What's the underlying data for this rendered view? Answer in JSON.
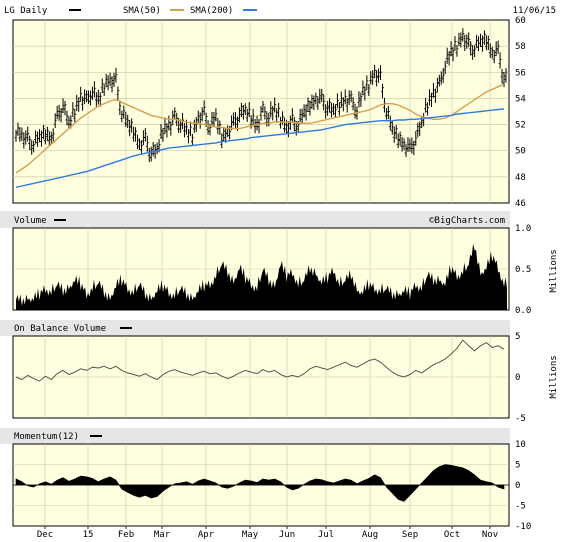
{
  "header": {
    "symbol_label": "LG Daily",
    "sma50_label": "SMA(50)",
    "sma200_label": "SMA(200)",
    "date": "11/06/15",
    "watermark": "©BigCharts.com"
  },
  "colors": {
    "panel_bg": "#ffffe0",
    "panel_header": "#e6e6e6",
    "price": "#000000",
    "sma50": "#d4a04a",
    "sma200": "#2f7ae5",
    "volume": "#000000",
    "obv": "#555555",
    "momentum": "#000000"
  },
  "x_axis": {
    "labels": [
      "Dec",
      "15",
      "Feb",
      "Mar",
      "Apr",
      "May",
      "Jun",
      "Jul",
      "Aug",
      "Sep",
      "Oct",
      "Nov"
    ]
  },
  "chart_data": [
    {
      "type": "line",
      "panel": "price",
      "title": "LG Daily",
      "yticks": [
        "60",
        "58",
        "56",
        "54",
        "52",
        "50",
        "48",
        "46"
      ],
      "ylim": [
        46,
        60
      ],
      "grid": true,
      "series": [
        {
          "name": "LG Daily",
          "values": [
            51.5,
            51.2,
            50.8,
            50.5,
            50.9,
            51.3,
            51.0,
            52.5,
            53.5,
            52.0,
            53.0,
            54.2,
            53.8,
            54.5,
            53.8,
            55.0,
            55.4,
            55.3,
            52.8,
            52.0,
            51.5,
            50.5,
            50.8,
            49.8,
            50.0,
            51.5,
            52.0,
            52.5,
            52.0,
            51.5,
            51.2,
            52.5,
            52.8,
            51.8,
            52.5,
            51.0,
            51.5,
            52.0,
            52.8,
            53.0,
            52.5,
            52.0,
            53.0,
            52.5,
            53.2,
            52.5,
            51.8,
            52.2,
            52.0,
            52.8,
            53.5,
            54.0,
            53.8,
            53.3,
            53.0,
            53.5,
            54.0,
            53.8,
            53.0,
            54.5,
            55.0,
            56.0,
            55.5,
            53.0,
            51.5,
            51.0,
            50.5,
            50.0,
            51.0,
            52.0,
            53.5,
            54.5,
            55.0,
            56.5,
            57.5,
            58.0,
            58.8,
            58.0,
            57.8,
            58.2,
            58.5,
            57.5,
            57.5,
            55.5
          ]
        },
        {
          "name": "SMA(50)",
          "values": [
            48.3,
            48.6,
            48.9,
            49.3,
            49.7,
            50.1,
            50.5,
            50.9,
            51.3,
            51.7,
            52.1,
            52.5,
            52.8,
            53.1,
            53.4,
            53.6,
            53.8,
            53.9,
            53.7,
            53.5,
            53.3,
            53.1,
            52.9,
            52.7,
            52.6,
            52.5,
            52.4,
            52.4,
            52.3,
            52.2,
            52.1,
            52.1,
            52.0,
            51.9,
            51.8,
            51.8,
            51.7,
            51.7,
            51.7,
            51.8,
            51.9,
            52.0,
            52.1,
            52.1,
            52.2,
            52.2,
            52.2,
            52.2,
            52.1,
            52.1,
            52.1,
            52.2,
            52.3,
            52.4,
            52.5,
            52.6,
            52.7,
            52.8,
            52.9,
            53.0,
            53.1,
            53.3,
            53.5,
            53.6,
            53.6,
            53.5,
            53.3,
            53.1,
            52.8,
            52.6,
            52.5,
            52.4,
            52.4,
            52.5,
            52.7,
            53.0,
            53.3,
            53.6,
            53.9,
            54.2,
            54.5,
            54.7,
            54.9,
            55.1
          ]
        },
        {
          "name": "SMA(200)",
          "values": [
            47.2,
            47.3,
            47.4,
            47.5,
            47.6,
            47.7,
            47.8,
            47.9,
            48.0,
            48.1,
            48.2,
            48.3,
            48.4,
            48.55,
            48.7,
            48.85,
            49.0,
            49.15,
            49.3,
            49.45,
            49.6,
            49.7,
            49.8,
            49.9,
            50.0,
            50.1,
            50.2,
            50.25,
            50.3,
            50.35,
            50.4,
            50.45,
            50.5,
            50.55,
            50.6,
            50.7,
            50.75,
            50.8,
            50.85,
            50.9,
            51.0,
            51.05,
            51.1,
            51.15,
            51.2,
            51.25,
            51.3,
            51.35,
            51.4,
            51.45,
            51.5,
            51.55,
            51.6,
            51.7,
            51.8,
            51.9,
            52.0,
            52.05,
            52.1,
            52.15,
            52.2,
            52.25,
            52.3,
            52.3,
            52.3,
            52.35,
            52.35,
            52.4,
            52.4,
            52.45,
            52.5,
            52.55,
            52.6,
            52.65,
            52.7,
            52.8,
            52.85,
            52.9,
            52.95,
            53.0,
            53.05,
            53.1,
            53.15,
            53.2
          ]
        }
      ]
    },
    {
      "type": "area",
      "panel": "volume",
      "title": "Volume",
      "yticks": [
        "1.0",
        "0.5",
        "0.0"
      ],
      "ylim": [
        0,
        1.0
      ],
      "y_unit": "Millions",
      "series": [
        {
          "name": "Volume",
          "values": [
            0.12,
            0.1,
            0.15,
            0.12,
            0.18,
            0.25,
            0.2,
            0.3,
            0.22,
            0.28,
            0.35,
            0.3,
            0.18,
            0.25,
            0.32,
            0.2,
            0.15,
            0.28,
            0.35,
            0.25,
            0.2,
            0.3,
            0.18,
            0.15,
            0.22,
            0.28,
            0.2,
            0.16,
            0.25,
            0.18,
            0.15,
            0.22,
            0.28,
            0.3,
            0.4,
            0.55,
            0.45,
            0.35,
            0.5,
            0.38,
            0.3,
            0.25,
            0.48,
            0.35,
            0.3,
            0.55,
            0.4,
            0.45,
            0.3,
            0.35,
            0.5,
            0.45,
            0.32,
            0.38,
            0.48,
            0.3,
            0.35,
            0.42,
            0.25,
            0.2,
            0.3,
            0.25,
            0.22,
            0.25,
            0.18,
            0.2,
            0.22,
            0.18,
            0.3,
            0.25,
            0.42,
            0.35,
            0.38,
            0.3,
            0.5,
            0.4,
            0.45,
            0.55,
            0.78,
            0.45,
            0.5,
            0.65,
            0.5,
            0.3
          ]
        }
      ]
    },
    {
      "type": "line",
      "panel": "obv",
      "title": "On Balance Volume",
      "yticks": [
        "5",
        "0",
        "-5"
      ],
      "ylim": [
        -5,
        5
      ],
      "y_unit": "Millions",
      "series": [
        {
          "name": "On Balance Volume",
          "values": [
            0.0,
            -0.3,
            0.2,
            -0.2,
            -0.5,
            0.1,
            -0.3,
            0.4,
            0.8,
            0.3,
            0.6,
            1.0,
            0.8,
            1.2,
            1.1,
            1.3,
            1.0,
            1.3,
            0.8,
            0.5,
            0.3,
            0.1,
            0.4,
            0.0,
            -0.3,
            0.3,
            0.7,
            0.9,
            0.6,
            0.4,
            0.2,
            0.5,
            0.7,
            0.4,
            0.5,
            0.1,
            -0.2,
            0.1,
            0.5,
            0.8,
            0.6,
            0.4,
            0.9,
            0.6,
            0.8,
            0.3,
            0.0,
            0.2,
            0.0,
            0.4,
            1.0,
            1.3,
            1.1,
            0.9,
            1.2,
            1.5,
            1.8,
            1.4,
            1.2,
            1.6,
            2.0,
            2.2,
            1.8,
            1.2,
            0.6,
            0.2,
            0.0,
            0.3,
            0.8,
            0.5,
            1.0,
            1.5,
            1.8,
            2.2,
            2.8,
            3.5,
            4.5,
            3.8,
            3.2,
            3.8,
            4.2,
            3.6,
            3.8,
            3.4
          ]
        }
      ]
    },
    {
      "type": "area",
      "panel": "momentum",
      "title": "Momentum(12)",
      "yticks": [
        "10",
        "5",
        "0",
        "-5",
        "-10"
      ],
      "ylim": [
        -10,
        10
      ],
      "series": [
        {
          "name": "Momentum(12)",
          "values": [
            1.5,
            0.8,
            -0.2,
            -0.5,
            0.3,
            0.8,
            0.2,
            1.2,
            1.8,
            0.9,
            1.5,
            2.2,
            2.0,
            1.6,
            0.8,
            1.5,
            2.0,
            1.2,
            -1.0,
            -1.8,
            -2.5,
            -3.0,
            -2.5,
            -3.2,
            -2.8,
            -1.5,
            -0.5,
            0.3,
            0.5,
            0.8,
            0.2,
            1.0,
            1.5,
            1.0,
            0.5,
            -0.5,
            -0.8,
            -0.3,
            0.5,
            1.2,
            1.0,
            0.6,
            1.5,
            1.2,
            1.5,
            0.8,
            -0.5,
            -1.2,
            -0.8,
            0.2,
            1.0,
            1.5,
            1.3,
            0.8,
            0.5,
            1.0,
            1.5,
            1.2,
            0.3,
            1.0,
            1.6,
            2.5,
            1.8,
            -0.5,
            -2.0,
            -3.5,
            -4.0,
            -2.5,
            -1.0,
            0.5,
            2.0,
            3.5,
            4.5,
            5.0,
            4.8,
            4.5,
            4.2,
            3.5,
            2.5,
            1.2,
            0.8,
            0.5,
            -0.5,
            -1.0
          ]
        }
      ]
    }
  ]
}
